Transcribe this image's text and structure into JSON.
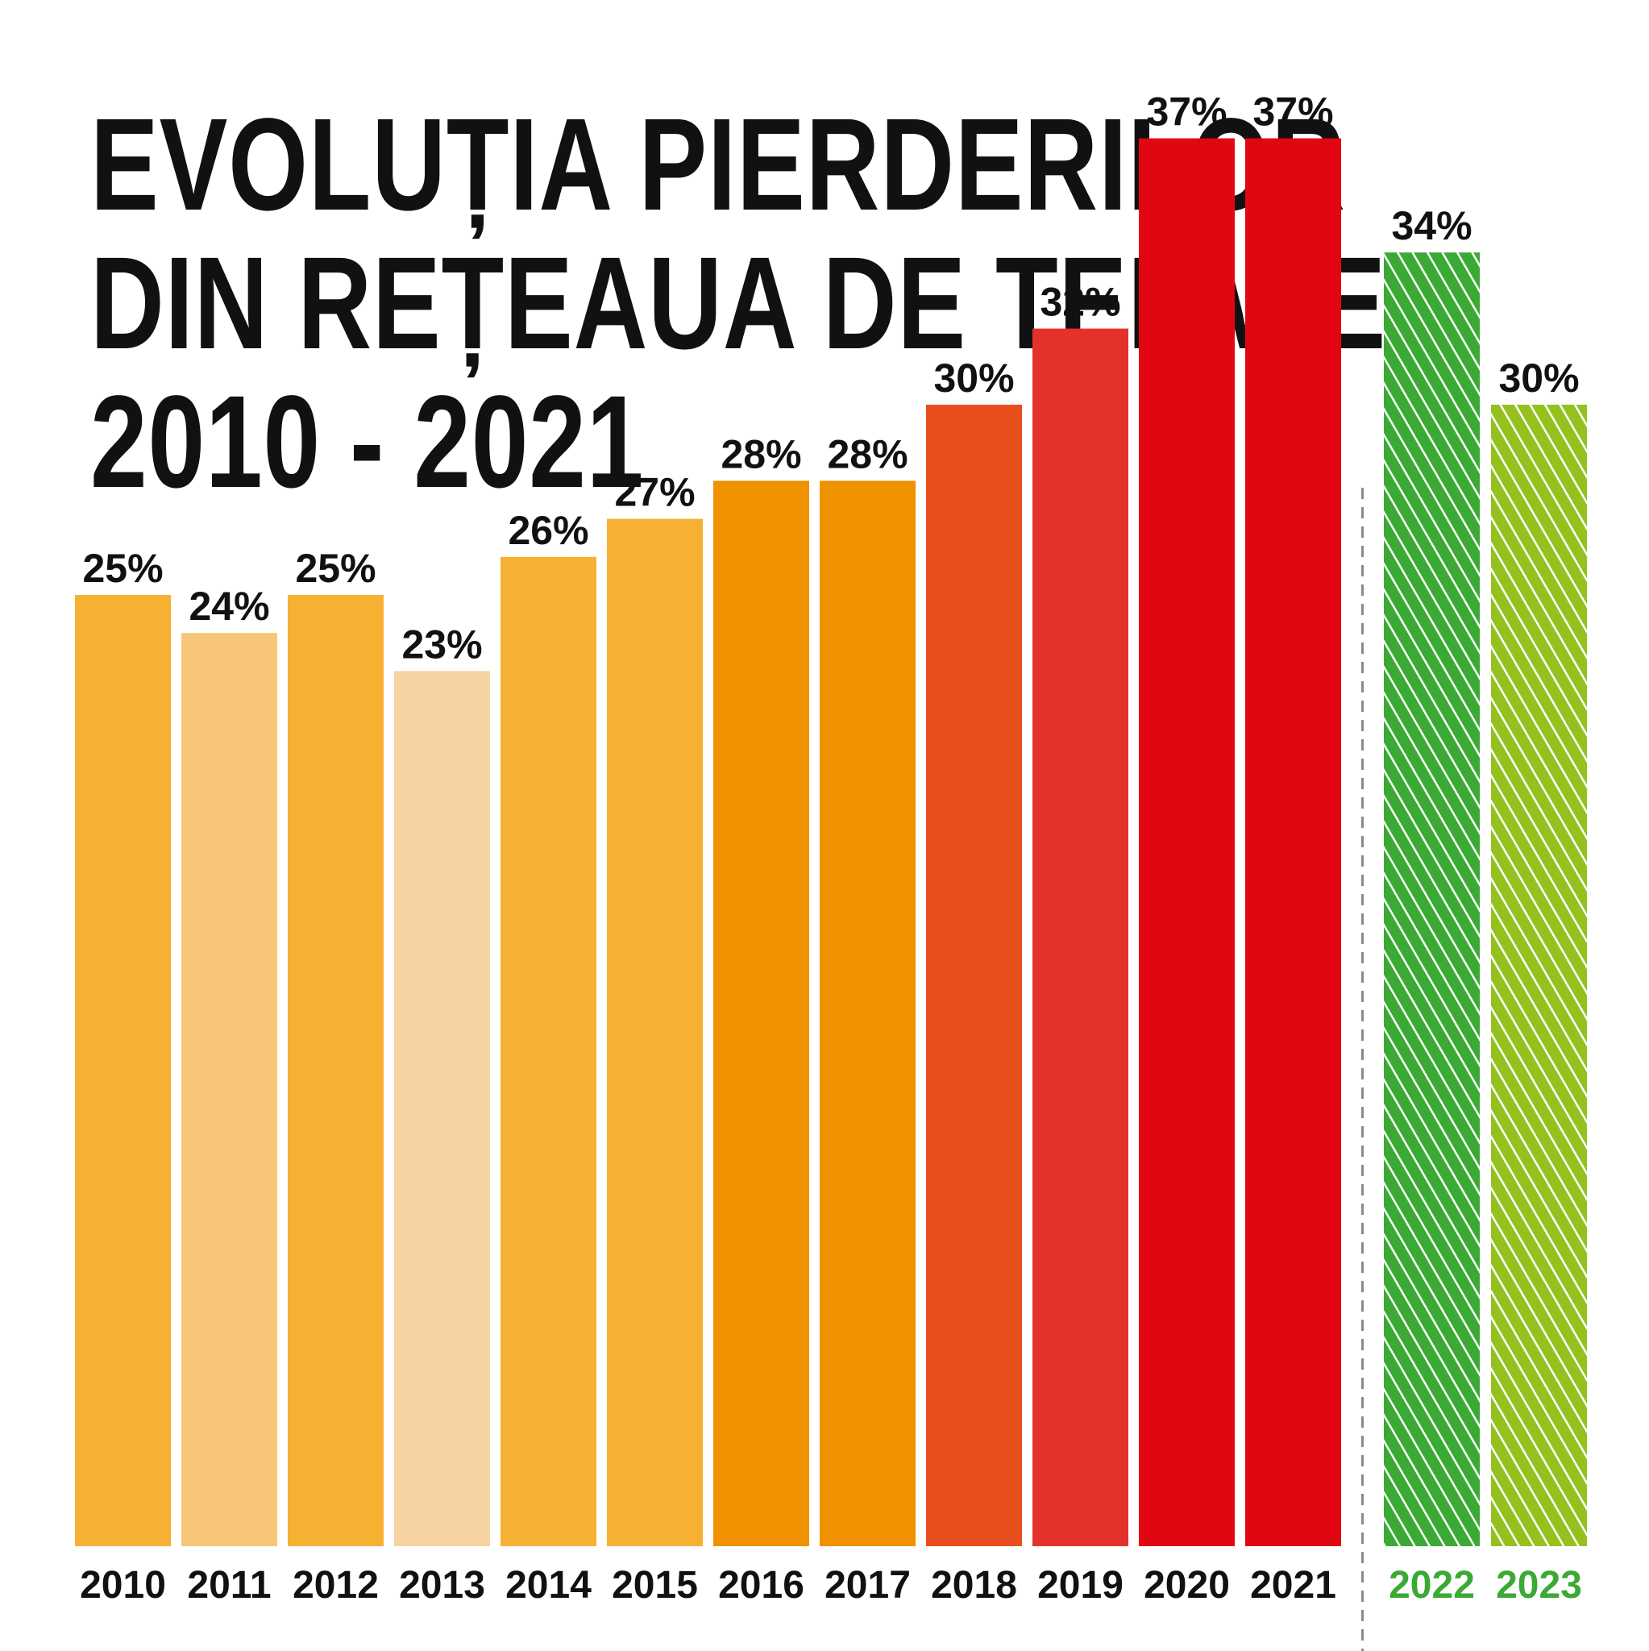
{
  "title_lines": [
    "EVOLUȚIA PIERDERILOR",
    "DIN REȚEAUA DE TERMIE",
    "2010 - 2021"
  ],
  "chart_data": {
    "type": "bar",
    "title": "EVOLUȚIA PIERDERILOR DIN REȚEAUA DE TERMIE 2010 - 2021",
    "xlabel": "",
    "ylabel": "",
    "ylim": [
      0,
      40
    ],
    "grid": false,
    "categories": [
      "2010",
      "2011",
      "2012",
      "2013",
      "2014",
      "2015",
      "2016",
      "2017",
      "2018",
      "2019",
      "2020",
      "2021",
      "2022",
      "2023"
    ],
    "values": [
      25,
      24,
      25,
      23,
      26,
      27,
      28,
      28,
      30,
      32,
      37,
      37,
      34,
      30
    ],
    "value_labels": [
      "25%",
      "24%",
      "25%",
      "23%",
      "26%",
      "27%",
      "28%",
      "28%",
      "30%",
      "32%",
      "37%",
      "37%",
      "34%",
      "30%"
    ],
    "bar_colors": [
      "#f6b133",
      "#f8c679",
      "#f6b133",
      "#f7d3a4",
      "#f6b133",
      "#f6b133",
      "#f09100",
      "#f09100",
      "#e94e1e",
      "#e4312b",
      "#e20613",
      "#e20613",
      "#3aaa35",
      "#95c11f"
    ],
    "hatched": [
      false,
      false,
      false,
      false,
      false,
      false,
      false,
      false,
      false,
      false,
      false,
      false,
      true,
      true
    ],
    "projected_label_color": "#3aaa35",
    "separator": "dashed vertical line between 2021 and 2022"
  }
}
